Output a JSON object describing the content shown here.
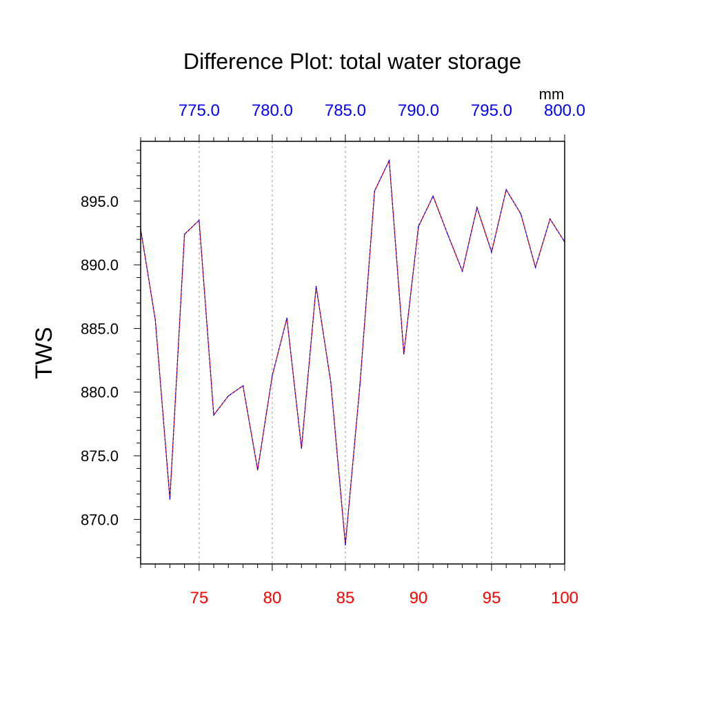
{
  "chart_data": {
    "type": "line",
    "title": "Difference Plot: total water storage",
    "units": "mm",
    "ylabel": "TWS",
    "xlabel": "",
    "xlim": [
      71,
      100
    ],
    "ylim": [
      866.5,
      899.7
    ],
    "x_ticks_bottom": [
      {
        "value": 75,
        "label": "75"
      },
      {
        "value": 80,
        "label": "80"
      },
      {
        "value": 85,
        "label": "85"
      },
      {
        "value": 90,
        "label": "90"
      },
      {
        "value": 95,
        "label": "95"
      },
      {
        "value": 100,
        "label": "100"
      }
    ],
    "x_ticks_top": [
      {
        "value": 75,
        "label": "775.0"
      },
      {
        "value": 80,
        "label": "780.0"
      },
      {
        "value": 85,
        "label": "785.0"
      },
      {
        "value": 90,
        "label": "790.0"
      },
      {
        "value": 95,
        "label": "795.0"
      },
      {
        "value": 100,
        "label": "800.0"
      }
    ],
    "y_ticks": [
      {
        "value": 870,
        "label": "870.0"
      },
      {
        "value": 875,
        "label": "875.0"
      },
      {
        "value": 880,
        "label": "880.0"
      },
      {
        "value": 885,
        "label": "885.0"
      },
      {
        "value": 890,
        "label": "890.0"
      },
      {
        "value": 895,
        "label": "895.0"
      }
    ],
    "grid": "vertical dashed at major x ticks",
    "series": [
      {
        "name": "series-red",
        "color": "#ff0000",
        "dashed": false,
        "x": [
          71,
          72,
          73,
          74,
          75,
          76,
          77,
          78,
          79,
          80,
          81,
          82,
          83,
          84,
          85,
          86,
          87,
          88,
          89,
          90,
          91,
          92,
          93,
          94,
          95,
          96,
          97,
          98,
          99,
          100
        ],
        "values": [
          892.8,
          885.7,
          871.6,
          892.4,
          893.5,
          878.2,
          879.7,
          880.5,
          873.9,
          881.3,
          885.8,
          875.6,
          888.3,
          880.8,
          868.0,
          880.6,
          895.8,
          898.2,
          883.0,
          893.0,
          895.4,
          892.4,
          889.5,
          894.5,
          891.0,
          895.9,
          894.0,
          889.8,
          893.6,
          891.8
        ]
      },
      {
        "name": "series-blue",
        "color": "#0000ff",
        "dashed": true,
        "x": [
          71,
          72,
          73,
          74,
          75,
          76,
          77,
          78,
          79,
          80,
          81,
          82,
          83,
          84,
          85,
          86,
          87,
          88,
          89,
          90,
          91,
          92,
          93,
          94,
          95,
          96,
          97,
          98,
          99,
          100
        ],
        "values": [
          892.8,
          885.7,
          871.6,
          892.4,
          893.5,
          878.2,
          879.7,
          880.5,
          873.9,
          881.3,
          885.8,
          875.6,
          888.3,
          880.8,
          868.0,
          880.6,
          895.8,
          898.2,
          883.0,
          893.0,
          895.4,
          892.4,
          889.5,
          894.5,
          891.0,
          895.9,
          894.0,
          889.8,
          893.6,
          891.8
        ]
      }
    ]
  }
}
